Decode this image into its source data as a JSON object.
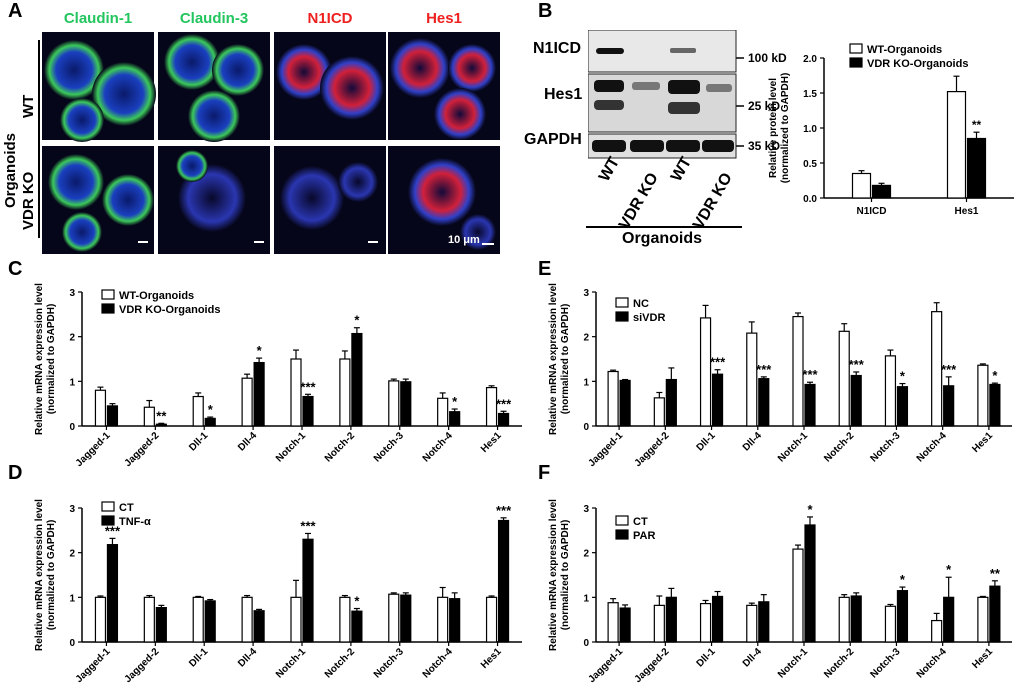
{
  "panel_labels": [
    "A",
    "B",
    "C",
    "D",
    "E",
    "F"
  ],
  "panelA": {
    "stains": [
      {
        "label": "Claudin-1",
        "color": "#22c55e"
      },
      {
        "label": "Claudin-3",
        "color": "#22c55e"
      },
      {
        "label": "N1ICD",
        "color": "#ef2020"
      },
      {
        "label": "Hes1",
        "color": "#ef2020"
      }
    ],
    "group_label": "Organoids",
    "rows": [
      "WT",
      "VDR KO"
    ],
    "scale_bar": "10 μm"
  },
  "panelB": {
    "blot_rows": [
      "N1ICD",
      "Hes1",
      "GAPDH"
    ],
    "size_markers": [
      "100 kD",
      "25 kD",
      "35 kD"
    ],
    "lanes": [
      "WT",
      "VDR KO",
      "WT",
      "VDR KO"
    ],
    "group_label": "Organoids"
  },
  "chart_data": [
    {
      "id": "B",
      "type": "bar",
      "categories": [
        "N1ICD",
        "Hes1"
      ],
      "series": [
        {
          "name": "WT-Organoids",
          "values": [
            0.35,
            1.52
          ],
          "err": [
            0.04,
            0.22
          ]
        },
        {
          "name": "VDR KO-Organoids",
          "values": [
            0.18,
            0.85
          ],
          "err": [
            0.03,
            0.09
          ]
        }
      ],
      "sig": [
        [
          "",
          "**"
        ],
        [
          "",
          "**"
        ]
      ],
      "ylabel": "Relative protein level\n(normalized to GAPDH)",
      "ylim": [
        0,
        2.0
      ],
      "yticks": [
        0.0,
        0.5,
        1.0,
        1.5,
        2.0
      ],
      "ytick_labels": [
        "0.0",
        "0.5",
        "1.0",
        "1.5",
        "2.0"
      ],
      "legend": "top-right"
    },
    {
      "id": "C",
      "type": "bar",
      "categories": [
        "Jagged-1",
        "Jagged-2",
        "Dll-1",
        "Dll-4",
        "Notch-1",
        "Notch-2",
        "Notch-3",
        "Notch-4",
        "Hes1"
      ],
      "series": [
        {
          "name": "WT-Organoids",
          "values": [
            0.8,
            0.42,
            0.66,
            1.07,
            1.5,
            1.5,
            1.01,
            0.62,
            0.86
          ],
          "err": [
            0.07,
            0.15,
            0.08,
            0.09,
            0.2,
            0.18,
            0.04,
            0.12,
            0.04
          ]
        },
        {
          "name": "VDR KO-Organoids",
          "values": [
            0.45,
            0.04,
            0.17,
            1.42,
            0.66,
            2.07,
            0.99,
            0.32,
            0.28
          ],
          "err": [
            0.05,
            0.02,
            0.03,
            0.1,
            0.05,
            0.13,
            0.06,
            0.06,
            0.05
          ]
        }
      ],
      "sig": [
        "",
        "**",
        "*",
        "*",
        "***",
        "*",
        "",
        "*",
        "***"
      ],
      "ylabel": "Relative mRNA expression level\n(normalized to GAPDH)",
      "ylim": [
        0,
        3
      ],
      "yticks": [
        0,
        1,
        2,
        3
      ],
      "ytick_labels": [
        "0",
        "1",
        "2",
        "3"
      ],
      "legend": "top-left"
    },
    {
      "id": "D",
      "type": "bar",
      "categories": [
        "Jagged-1",
        "Jagged-2",
        "Dll-1",
        "Dll-4",
        "Notch-1",
        "Notch-2",
        "Notch-3",
        "Notch-4",
        "Hes1"
      ],
      "series": [
        {
          "name": "CT",
          "values": [
            1.0,
            1.0,
            1.0,
            1.0,
            1.0,
            1.0,
            1.07,
            1.0,
            1.0
          ],
          "err": [
            0.03,
            0.04,
            0.02,
            0.04,
            0.38,
            0.04,
            0.03,
            0.22,
            0.03
          ]
        },
        {
          "name": "TNF-α",
          "values": [
            2.18,
            0.77,
            0.92,
            0.7,
            2.3,
            0.69,
            1.05,
            0.97,
            2.72
          ],
          "err": [
            0.14,
            0.05,
            0.03,
            0.03,
            0.13,
            0.06,
            0.05,
            0.13,
            0.06
          ]
        }
      ],
      "sig": [
        "***",
        "",
        "",
        "",
        "***",
        "*",
        "",
        "",
        "***"
      ],
      "ylabel": "Relative mRNA expression level\n(normalized to GAPDH)",
      "ylim": [
        0,
        3
      ],
      "yticks": [
        0,
        1,
        2,
        3
      ],
      "ytick_labels": [
        "0",
        "1",
        "2",
        "3"
      ],
      "legend": "top-left"
    },
    {
      "id": "E",
      "type": "bar",
      "categories": [
        "Jagged-1",
        "Jagged-2",
        "Dll-1",
        "Dll-4",
        "Notch-1",
        "Notch-2",
        "Notch-3",
        "Notch-4",
        "Hes1"
      ],
      "series": [
        {
          "name": "NC",
          "values": [
            1.22,
            0.63,
            2.42,
            2.08,
            2.45,
            2.12,
            1.57,
            2.56,
            1.36
          ],
          "err": [
            0.03,
            0.12,
            0.28,
            0.25,
            0.08,
            0.17,
            0.13,
            0.2,
            0.03
          ]
        },
        {
          "name": "siVDR",
          "values": [
            1.02,
            1.04,
            1.16,
            1.06,
            0.93,
            1.13,
            0.88,
            0.9,
            0.93
          ],
          "err": [
            0.02,
            0.26,
            0.1,
            0.04,
            0.05,
            0.08,
            0.07,
            0.2,
            0.03
          ]
        }
      ],
      "sig": [
        "",
        "",
        "***",
        "***",
        "***",
        "***",
        "*",
        "***",
        "*"
      ],
      "ylabel": "Relative mRNA expression level\n(normalized to GAPDH)",
      "ylim": [
        0,
        3
      ],
      "yticks": [
        0,
        1,
        2,
        3
      ],
      "ytick_labels": [
        "0",
        "1",
        "2",
        "3"
      ],
      "legend": "top-left"
    },
    {
      "id": "F",
      "type": "bar",
      "categories": [
        "Jagged-1",
        "Jagged-2",
        "Dll-1",
        "Dll-4",
        "Notch-1",
        "Notch-2",
        "Notch-3",
        "Notch-4",
        "Hes1"
      ],
      "series": [
        {
          "name": "CT",
          "values": [
            0.88,
            0.82,
            0.86,
            0.82,
            2.08,
            1.0,
            0.8,
            0.48,
            1.0
          ],
          "err": [
            0.09,
            0.21,
            0.07,
            0.05,
            0.09,
            0.06,
            0.04,
            0.16,
            0.02
          ]
        },
        {
          "name": "PAR",
          "values": [
            0.76,
            1.0,
            1.02,
            0.9,
            2.62,
            1.03,
            1.15,
            1.0,
            1.25
          ],
          "err": [
            0.07,
            0.2,
            0.11,
            0.16,
            0.18,
            0.07,
            0.08,
            0.45,
            0.12
          ]
        }
      ],
      "sig": [
        "",
        "",
        "",
        "",
        "*",
        "",
        "*",
        "*",
        "**"
      ],
      "ylabel": "Relative mRNA expression level\n(normalized to GAPDH)",
      "ylim": [
        0,
        3
      ],
      "yticks": [
        0,
        1,
        2,
        3
      ],
      "ytick_labels": [
        "0",
        "1",
        "2",
        "3"
      ],
      "legend": "top-left"
    }
  ]
}
